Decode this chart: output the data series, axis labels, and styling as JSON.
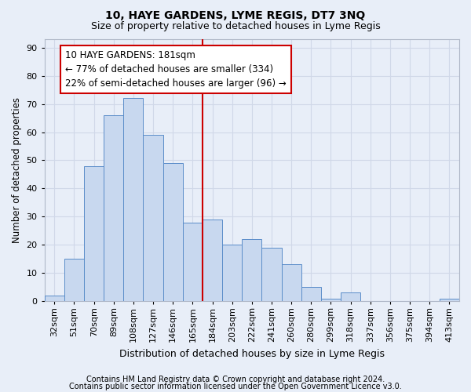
{
  "title": "10, HAYE GARDENS, LYME REGIS, DT7 3NQ",
  "subtitle": "Size of property relative to detached houses in Lyme Regis",
  "xlabel": "Distribution of detached houses by size in Lyme Regis",
  "ylabel": "Number of detached properties",
  "footer_line1": "Contains HM Land Registry data © Crown copyright and database right 2024.",
  "footer_line2": "Contains public sector information licensed under the Open Government Licence v3.0.",
  "bin_labels": [
    "32sqm",
    "51sqm",
    "70sqm",
    "89sqm",
    "108sqm",
    "127sqm",
    "146sqm",
    "165sqm",
    "184sqm",
    "203sqm",
    "222sqm",
    "241sqm",
    "260sqm",
    "280sqm",
    "299sqm",
    "318sqm",
    "337sqm",
    "356sqm",
    "375sqm",
    "394sqm",
    "413sqm"
  ],
  "bar_values": [
    2,
    15,
    48,
    66,
    72,
    59,
    49,
    28,
    29,
    20,
    22,
    19,
    13,
    5,
    1,
    3,
    0,
    0,
    0,
    0,
    1
  ],
  "bar_color": "#c8d8ef",
  "bar_edge_color": "#5b8dc9",
  "vline_x": 7.5,
  "annotation_text_line1": "10 HAYE GARDENS: 181sqm",
  "annotation_text_line2": "← 77% of detached houses are smaller (334)",
  "annotation_text_line3": "22% of semi-detached houses are larger (96) →",
  "annotation_box_color": "#ffffff",
  "annotation_box_edge_color": "#cc0000",
  "vline_color": "#cc0000",
  "ylim": [
    0,
    93
  ],
  "yticks": [
    0,
    10,
    20,
    30,
    40,
    50,
    60,
    70,
    80,
    90
  ],
  "grid_color": "#d0d8e8",
  "background_color": "#e8eef8",
  "title_fontsize": 10,
  "subtitle_fontsize": 9,
  "ylabel_fontsize": 8.5,
  "xlabel_fontsize": 9,
  "tick_fontsize": 8,
  "footer_fontsize": 7,
  "ann_fontsize": 8.5
}
